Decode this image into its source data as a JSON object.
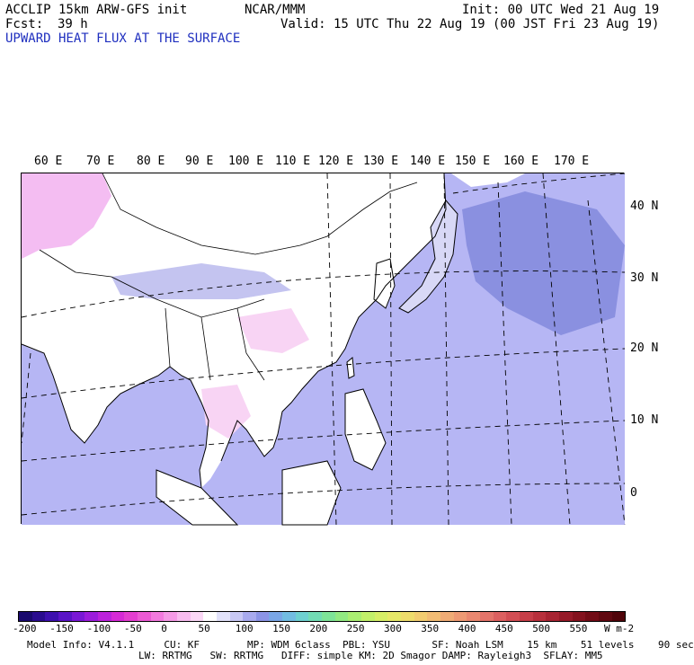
{
  "header": {
    "model": "ACCLIP 15km ARW-GFS init",
    "center": "NCAR/MMM",
    "init": "Init: 00 UTC Wed 21 Aug 19",
    "fcst_label": "Fcst:",
    "fcst_value": "39 h",
    "valid": "Valid: 15 UTC Thu 22 Aug 19 (00 JST Fri 23 Aug 19)",
    "field": "UPWARD HEAT FLUX AT THE SURFACE"
  },
  "map": {
    "lon_labels": [
      "60 E",
      "70 E",
      "80 E",
      "90 E",
      "100 E",
      "110 E",
      "120 E",
      "130 E",
      "140 E",
      "150 E",
      "160 E",
      "170 E"
    ],
    "lat_labels": [
      "40 N",
      "30 N",
      "20 N",
      "10 N",
      "0"
    ],
    "colors": {
      "land": "#ffffff",
      "ocean": "#b6b6f4",
      "warm": "#f4bdf2",
      "cool": "#8a90e0",
      "coast": "#000000",
      "grid": "#000000"
    }
  },
  "colorbar": {
    "labels": [
      "-200",
      "-150",
      "-100",
      "-50",
      "0",
      "50",
      "100",
      "150",
      "200",
      "250",
      "300",
      "350",
      "400",
      "450",
      "500",
      "550"
    ],
    "unit": "W m-2",
    "colors": [
      "#1a0a6e",
      "#2a0c8f",
      "#3d10ae",
      "#5a14c6",
      "#7a18d6",
      "#9c1cdc",
      "#bc22dc",
      "#d62ad6",
      "#e43ed0",
      "#ec5ad4",
      "#f27ade",
      "#f59ae6",
      "#f8bcef",
      "#fbd8f6",
      "#ffffff",
      "#e2e2fa",
      "#c8c8f4",
      "#a8aaee",
      "#8c94e6",
      "#7aa6e6",
      "#72bce2",
      "#6ed0d0",
      "#72dcb4",
      "#7ee498",
      "#92ea82",
      "#aaee72",
      "#c2f06a",
      "#d6ee66",
      "#e6e868",
      "#eedc6c",
      "#f2cc70",
      "#f2bc74",
      "#f0ac76",
      "#ee9a74",
      "#ea8870",
      "#e4746a",
      "#dc6060",
      "#d24e54",
      "#c63e48",
      "#b8303c",
      "#a82432",
      "#961a28",
      "#84121e",
      "#720c16",
      "#600810",
      "#50040a"
    ]
  },
  "footer": {
    "line1": "Model Info: V4.1.1     CU: KF        MP: WDM 6class  PBL: YSU       SF: Noah LSM    15 km    51 levels    90 sec",
    "line2": "LW: RRTMG   SW: RRTMG   DIFF: simple KM: 2D Smagor DAMP: Rayleigh3  SFLAY: MM5"
  }
}
